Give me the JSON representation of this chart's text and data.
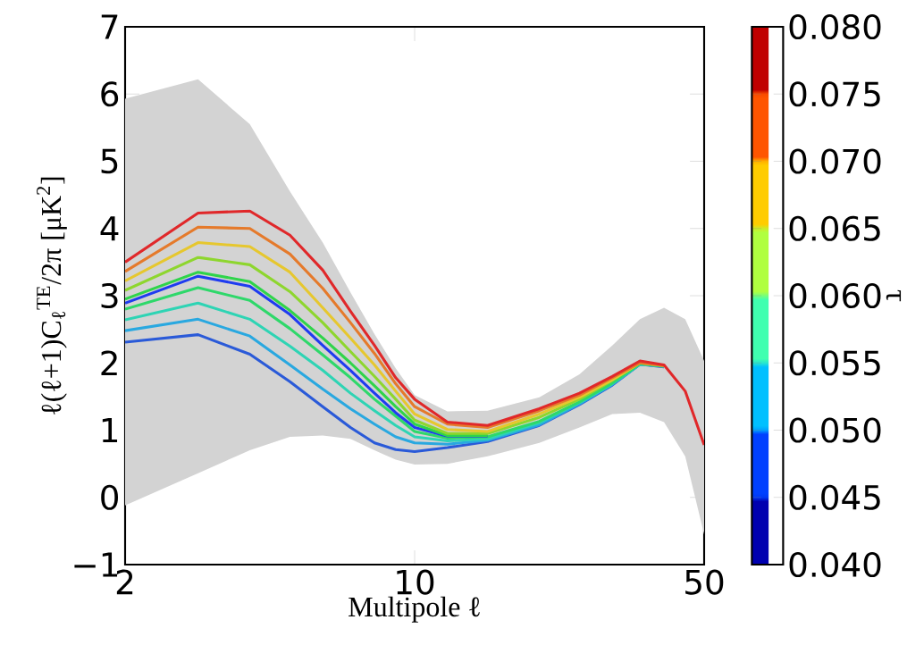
{
  "chart_data": {
    "type": "line",
    "xlabel": "Multipole ℓ",
    "ylabel": "ℓ(ℓ+1)C$_{ℓ}$$^{TE}$/2π [μK$^{2}$]",
    "clabel": "τ",
    "x": [
      2,
      3,
      4,
      5,
      6,
      7,
      8,
      9,
      10,
      12,
      15,
      20,
      25,
      30,
      35,
      40,
      45,
      50
    ],
    "log": "x",
    "xlim": [
      2,
      50
    ],
    "xticks": [
      2,
      10,
      50
    ],
    "ylim": [
      -1,
      7
    ],
    "yticks": [
      {
        "value": -1,
        "label": "−1"
      },
      0,
      1,
      2,
      3,
      4,
      5,
      6,
      7
    ],
    "clim": [
      0.04,
      0.08
    ],
    "cticks": [
      {
        "value": 0.04,
        "label": "0.040"
      },
      {
        "value": 0.045,
        "label": "0.045"
      },
      {
        "value": 0.05,
        "label": "0.050"
      },
      {
        "value": 0.055,
        "label": "0.055"
      },
      {
        "value": 0.06,
        "label": "0.060"
      },
      {
        "value": 0.065,
        "label": "0.065"
      },
      {
        "value": 0.07,
        "label": "0.070"
      },
      {
        "value": 0.075,
        "label": "0.075"
      },
      {
        "value": 0.08,
        "label": "0.080"
      }
    ],
    "grid": false,
    "series": [
      {
        "color": "#e0282a",
        "values": [
          3.5,
          4.23,
          4.26,
          3.9,
          3.38,
          2.77,
          2.26,
          1.78,
          1.46,
          1.12,
          1.07,
          1.32,
          1.55,
          1.8,
          2.03,
          1.97,
          1.58,
          0.78
        ],
        "lower": [
          -0.12,
          0.36,
          0.7,
          0.9,
          0.92,
          0.87,
          0.7,
          0.56,
          0.49,
          0.5,
          0.61,
          0.81,
          1.04,
          1.24,
          1.26,
          1.12,
          0.61,
          -0.55
        ],
        "upper": [
          5.93,
          6.22,
          5.55,
          4.55,
          3.79,
          3.05,
          2.43,
          1.92,
          1.52,
          1.28,
          1.29,
          1.49,
          1.83,
          2.26,
          2.65,
          2.82,
          2.65,
          2.03
        ]
      },
      {
        "color": "#e57a2b",
        "values": [
          3.36,
          4.02,
          4.0,
          3.62,
          3.11,
          2.6,
          2.14,
          1.69,
          1.35,
          1.09,
          1.04,
          1.29,
          1.52,
          1.78,
          2.0,
          1.96,
          null,
          null
        ]
      },
      {
        "color": "#e6c72e",
        "values": [
          3.22,
          3.79,
          3.73,
          3.35,
          2.82,
          2.37,
          1.97,
          1.58,
          1.24,
          1.01,
          0.98,
          1.24,
          1.49,
          1.75,
          2.0,
          1.96,
          null,
          null
        ]
      },
      {
        "color": "#8ed62e",
        "values": [
          3.08,
          3.57,
          3.46,
          3.06,
          2.6,
          2.17,
          1.8,
          1.46,
          1.15,
          0.95,
          0.95,
          1.19,
          1.46,
          1.74,
          2.0,
          1.96,
          null,
          null
        ]
      },
      {
        "color": "#2fd44a",
        "values": [
          2.95,
          3.35,
          3.21,
          2.78,
          2.37,
          2.0,
          1.66,
          1.35,
          1.09,
          0.92,
          0.92,
          null,
          null,
          null,
          null,
          null,
          null,
          null
        ]
      },
      {
        "color": "#1f3cf0",
        "values": [
          2.89,
          3.29,
          3.14,
          2.72,
          2.26,
          1.89,
          1.55,
          1.26,
          1.04,
          0.91,
          0.91,
          null,
          null,
          null,
          null,
          null,
          null,
          null
        ]
      },
      {
        "color": "#2ed86a",
        "values": [
          2.8,
          3.12,
          2.93,
          2.51,
          2.12,
          1.78,
          1.46,
          1.21,
          0.98,
          0.88,
          0.9,
          1.13,
          1.42,
          1.7,
          1.99,
          1.95,
          null,
          null
        ]
      },
      {
        "color": "#2ed4b4",
        "values": [
          2.64,
          2.89,
          2.65,
          2.25,
          1.89,
          1.55,
          1.29,
          1.07,
          0.9,
          0.84,
          0.87,
          1.11,
          1.41,
          1.69,
          1.98,
          1.95,
          null,
          null
        ]
      },
      {
        "color": "#29a8e0",
        "values": [
          2.48,
          2.65,
          2.4,
          1.97,
          1.61,
          1.32,
          1.09,
          0.9,
          0.81,
          0.79,
          0.85,
          1.08,
          1.39,
          1.68,
          1.98,
          1.95,
          null,
          null
        ]
      },
      {
        "color": "#2a5ad8",
        "values": [
          2.31,
          2.42,
          2.13,
          1.72,
          1.35,
          1.04,
          0.81,
          0.71,
          0.68,
          0.74,
          0.83,
          1.07,
          1.38,
          1.67,
          1.98,
          1.94,
          null,
          null
        ]
      }
    ]
  }
}
